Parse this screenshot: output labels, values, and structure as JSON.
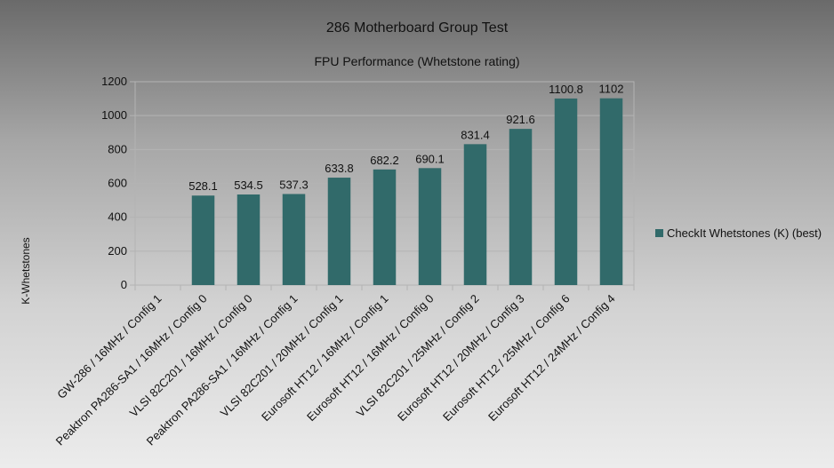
{
  "chart_data": {
    "type": "bar",
    "title": "286 Motherboard Group Test",
    "subtitle": "FPU Performance (Whetstone rating)",
    "xlabel": "",
    "ylabel": "K-Whetstones",
    "ylim": [
      0,
      1200
    ],
    "yticks": [
      0,
      200,
      400,
      600,
      800,
      1000,
      1200
    ],
    "grid": true,
    "legend_position": "right",
    "categories": [
      "GW-286 / 16MHz / Config 1",
      "Peaktron PA286-SA1 / 16MHz / Config 0",
      "VLSI 82C201 / 16MHz / Config 0",
      "Peaktron PA286-SA1 / 16MHz / Config 1",
      "VLSI 82C201 / 20MHz / Config 1",
      "Eurosoft HT12 / 16MHz / Config 1",
      "Eurosoft HT12 / 16MHz / Config 0",
      "VLSI 82C201 / 25MHz / Config 2",
      "Eurosoft HT12 / 20MHz / Config 3",
      "Eurosoft HT12 / 25MHz / Config 6",
      "Eurosoft HT12 / 24MHz / Config 4"
    ],
    "series": [
      {
        "name": "CheckIt Whetstones (K) (best)",
        "color": "#316a6a",
        "values": [
          null,
          528.1,
          534.5,
          537.3,
          633.8,
          682.2,
          690.1,
          831.4,
          921.6,
          1100.8,
          1102
        ],
        "data_labels": [
          "",
          "528.1",
          "534.5",
          "537.3",
          "633.8",
          "682.2",
          "690.1",
          "831.4",
          "921.6",
          "1100.8",
          "1102"
        ]
      }
    ]
  }
}
